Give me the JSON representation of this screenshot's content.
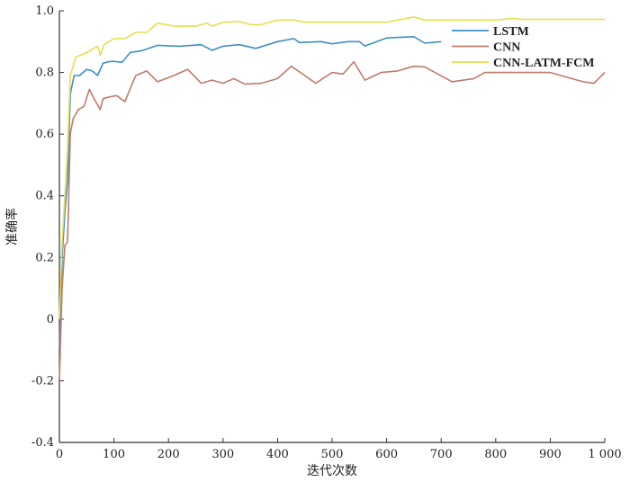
{
  "chart_data": {
    "type": "line",
    "title": "",
    "xlabel": "迭代次数",
    "ylabel": "准确率",
    "xlim": [
      0,
      1000
    ],
    "ylim": [
      -0.4,
      1.0
    ],
    "xticks": [
      0,
      100,
      200,
      300,
      400,
      500,
      600,
      700,
      800,
      900,
      1000
    ],
    "xtick_labels": [
      "0",
      "100",
      "200",
      "300",
      "400",
      "500",
      "600",
      "700",
      "800",
      "900",
      "1 000"
    ],
    "yticks": [
      -0.4,
      -0.2,
      0,
      0.2,
      0.4,
      0.6,
      0.8,
      1.0
    ],
    "ytick_labels": [
      "-0.4",
      "-0.2",
      "0",
      "0.2",
      "0.4",
      "0.6",
      "0.8",
      "1.0"
    ],
    "grid": false,
    "legend_position": "top-right",
    "series": [
      {
        "name": "LSTM",
        "color": "#3d8fc4",
        "x": [
          0,
          5,
          10,
          15,
          20,
          27,
          37,
          50,
          60,
          70,
          80,
          90,
          100,
          115,
          130,
          150,
          180,
          220,
          260,
          280,
          300,
          330,
          360,
          400,
          430,
          440,
          480,
          500,
          530,
          550,
          560,
          600,
          650,
          670,
          700
        ],
        "y": [
          -0.1,
          0.2,
          0.35,
          0.45,
          0.73,
          0.79,
          0.79,
          0.81,
          0.805,
          0.79,
          0.83,
          0.835,
          0.836,
          0.833,
          0.865,
          0.87,
          0.888,
          0.885,
          0.89,
          0.872,
          0.885,
          0.89,
          0.878,
          0.9,
          0.91,
          0.897,
          0.9,
          0.893,
          0.9,
          0.9,
          0.886,
          0.912,
          0.916,
          0.895,
          0.9
        ]
      },
      {
        "name": "CNN",
        "color": "#c07a6a",
        "x": [
          0,
          5,
          10,
          15,
          20,
          25,
          35,
          45,
          55,
          65,
          75,
          80,
          90,
          105,
          120,
          140,
          160,
          180,
          210,
          235,
          260,
          280,
          300,
          320,
          340,
          370,
          400,
          425,
          450,
          470,
          500,
          520,
          540,
          560,
          590,
          620,
          650,
          670,
          720,
          760,
          780,
          900,
          960,
          980,
          1000
        ],
        "y": [
          -0.2,
          0.1,
          0.24,
          0.25,
          0.6,
          0.65,
          0.68,
          0.69,
          0.745,
          0.71,
          0.68,
          0.715,
          0.72,
          0.725,
          0.705,
          0.79,
          0.805,
          0.77,
          0.79,
          0.81,
          0.765,
          0.775,
          0.765,
          0.78,
          0.762,
          0.765,
          0.78,
          0.82,
          0.79,
          0.765,
          0.8,
          0.795,
          0.835,
          0.775,
          0.8,
          0.805,
          0.82,
          0.818,
          0.77,
          0.78,
          0.8,
          0.8,
          0.77,
          0.765,
          0.8
        ]
      },
      {
        "name": "CNN-LATM-FCM",
        "color": "#e6df4e",
        "x": [
          0,
          5,
          10,
          15,
          20,
          30,
          45,
          55,
          70,
          75,
          82,
          100,
          120,
          140,
          160,
          180,
          210,
          250,
          270,
          280,
          300,
          330,
          350,
          370,
          400,
          430,
          450,
          500,
          550,
          600,
          620,
          650,
          670,
          700,
          800,
          830,
          850,
          1000
        ],
        "y": [
          0.0,
          0.25,
          0.4,
          0.55,
          0.79,
          0.85,
          0.86,
          0.87,
          0.885,
          0.856,
          0.89,
          0.91,
          0.91,
          0.93,
          0.93,
          0.96,
          0.95,
          0.95,
          0.96,
          0.95,
          0.963,
          0.965,
          0.955,
          0.955,
          0.97,
          0.97,
          0.963,
          0.963,
          0.963,
          0.963,
          0.97,
          0.98,
          0.97,
          0.97,
          0.97,
          0.975,
          0.972,
          0.972
        ]
      }
    ]
  }
}
